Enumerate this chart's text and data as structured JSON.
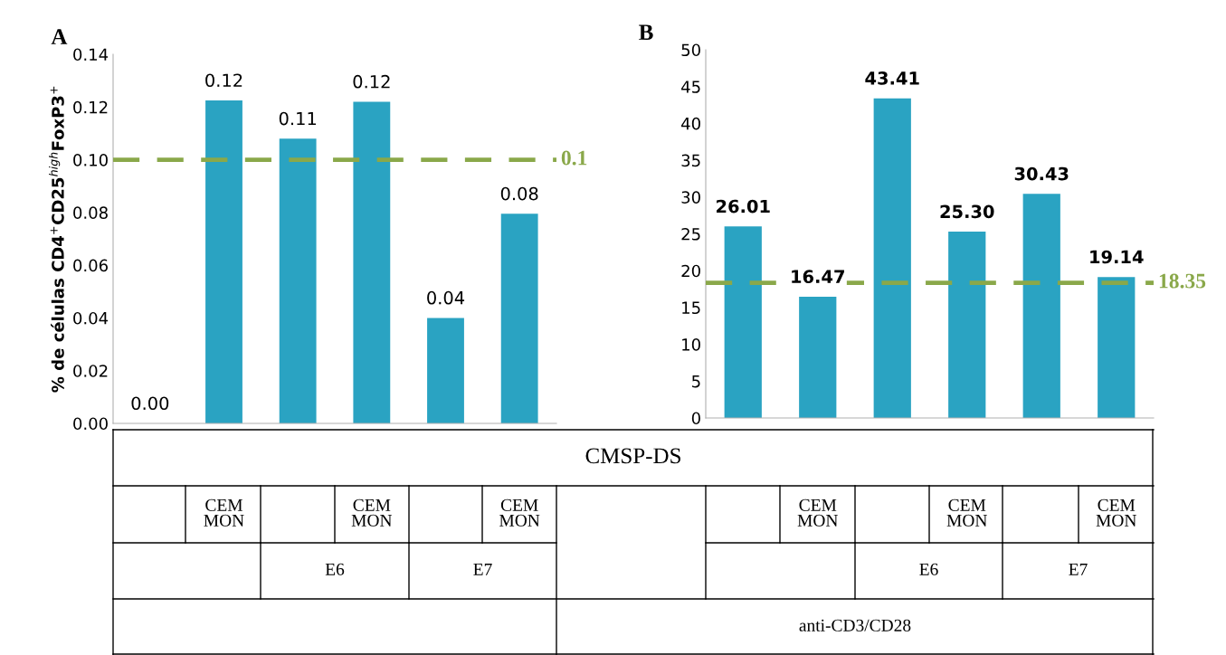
{
  "chart_data": [
    {
      "type": "bar",
      "title": "A",
      "ylabel": "% de células CD4$^{+}$CD25$^{high}$FoxP3$^{+}$",
      "categories": [
        null,
        "CEM\nMON",
        null,
        "CEM\nMON",
        null,
        "CEM\nMON"
      ],
      "values": [
        0.0,
        0.1225,
        0.108,
        0.122,
        0.04,
        0.0795
      ],
      "value_labels": [
        "0.00",
        "0.12",
        "0.11",
        "0.12",
        "0.04",
        "0.08"
      ],
      "color": "#2aa3c2",
      "ylim": [
        0,
        0.14
      ],
      "yticks": [
        {
          "value": 0,
          "label": "0.00"
        },
        {
          "value": 0.02,
          "label": "0.02"
        },
        {
          "value": 0.04,
          "label": "0.04"
        },
        {
          "value": 0.06,
          "label": "0.06"
        },
        {
          "value": 0.08,
          "label": "0.08"
        },
        {
          "value": 0.1,
          "label": "0.10"
        },
        {
          "value": 0.12,
          "label": "0.12"
        },
        {
          "value": 0.14,
          "label": "0.14"
        }
      ],
      "ref_lines": [
        {
          "axis": "y",
          "value": 0.1,
          "label": "0.1",
          "color": "#8aa84a",
          "line_style": "dashed"
        }
      ],
      "annotations": [
        "CMSP-DS",
        "E6",
        "E7"
      ],
      "grid": false
    },
    {
      "type": "bar",
      "title": "B",
      "categories": [
        null,
        "CEM\nMON",
        null,
        "CEM\nMON",
        null,
        "CEM\nMON"
      ],
      "values": [
        26.01,
        16.47,
        43.41,
        25.3,
        30.43,
        19.14
      ],
      "data_labels": true,
      "value_labels": [
        "26.01",
        "16.47",
        "43.41",
        "25.30",
        "30.43",
        "19.14"
      ],
      "color": "#2aa3c2",
      "ylim": [
        0,
        50
      ],
      "yticks": [
        0,
        5,
        10,
        15,
        20,
        25,
        30,
        35,
        40,
        45,
        50
      ],
      "ref_lines": [
        {
          "axis": "y",
          "value": 18.35,
          "label": "18.35",
          "color": "#8aa84a",
          "line_style": "dashed"
        }
      ],
      "annotations": [
        "E6",
        "E7",
        "anti-CD3/CD28"
      ],
      "grid": false
    }
  ]
}
